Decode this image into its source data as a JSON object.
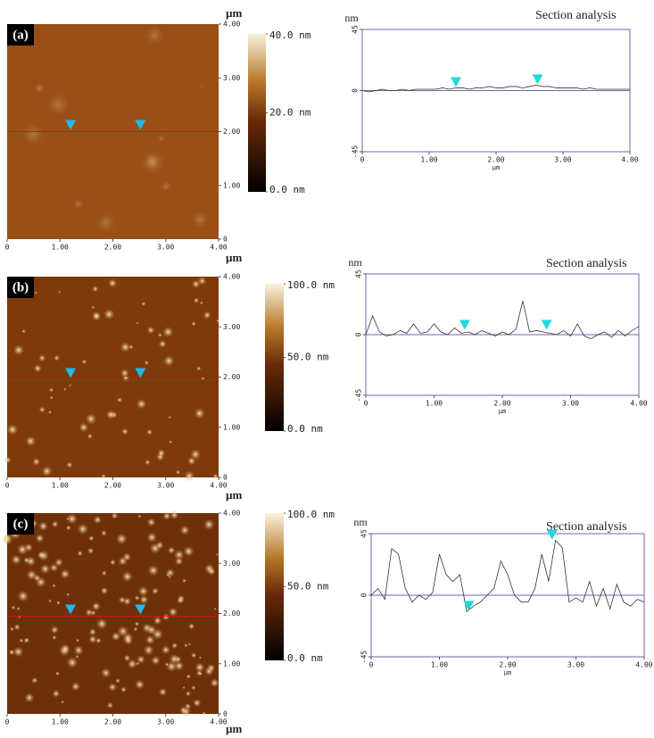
{
  "images": [
    {
      "label": "(a)",
      "unit": "µm",
      "xlim": [
        0,
        4
      ],
      "ylim": [
        0,
        4
      ],
      "xticks": [
        0,
        {
          "value": 1,
          "label": "1.00"
        },
        {
          "value": 2,
          "label": "2.00"
        },
        {
          "value": 3,
          "label": "3.00"
        },
        {
          "value": 4,
          "label": "4.00"
        }
      ],
      "yticks": [
        0,
        {
          "value": 1,
          "label": "1.00"
        },
        {
          "value": 2,
          "label": "2.00"
        },
        {
          "value": 3,
          "label": "3.00"
        },
        {
          "value": 4,
          "label": "4.00"
        }
      ],
      "clim": [
        0,
        40
      ],
      "colorbar_ticks": [
        {
          "value": 0,
          "label": "0.0 nm"
        },
        {
          "value": 20,
          "label": "20.0 nm"
        },
        {
          "value": 40,
          "label": "40.0 nm"
        }
      ]
    },
    {
      "label": "(b)",
      "unit": "µm",
      "xlim": [
        0,
        4
      ],
      "ylim": [
        0,
        4
      ],
      "xticks": [
        0,
        {
          "value": 1,
          "label": "1.00"
        },
        {
          "value": 2,
          "label": "2.00"
        },
        {
          "value": 3,
          "label": "3.00"
        },
        {
          "value": 4,
          "label": "4.00"
        }
      ],
      "yticks": [
        0,
        {
          "value": 1,
          "label": "1.00"
        },
        {
          "value": 2,
          "label": "2.00"
        },
        {
          "value": 3,
          "label": "3.00"
        },
        {
          "value": 4,
          "label": "4.00"
        }
      ],
      "clim": [
        0,
        100
      ],
      "colorbar_ticks": [
        {
          "value": 0,
          "label": "0.0 nm"
        },
        {
          "value": 50,
          "label": "50.0 nm"
        },
        {
          "value": 100,
          "label": "100.0 nm"
        }
      ]
    },
    {
      "label": "(c)",
      "unit": "µm",
      "xlim": [
        0,
        4
      ],
      "ylim": [
        0,
        4
      ],
      "xticks": [
        0,
        {
          "value": 1,
          "label": "1.00"
        },
        {
          "value": 2,
          "label": "2.00"
        },
        {
          "value": 3,
          "label": "3.00"
        },
        {
          "value": 4,
          "label": "4.00"
        }
      ],
      "yticks": [
        0,
        {
          "value": 1,
          "label": "1.00"
        },
        {
          "value": 2,
          "label": "2.00"
        },
        {
          "value": 3,
          "label": "3.00"
        },
        {
          "value": 4,
          "label": "4.00"
        }
      ],
      "clim": [
        0,
        100
      ],
      "colorbar_ticks": [
        {
          "value": 0,
          "label": "0.0 nm"
        },
        {
          "value": 50,
          "label": "50.0 nm"
        },
        {
          "value": 100,
          "label": "100.0 nm"
        }
      ]
    }
  ],
  "chart_data": [
    {
      "type": "line",
      "title": "Section analysis",
      "x_label": "µm",
      "y_label": "nm",
      "x": [
        0,
        0.1,
        0.2,
        0.3,
        0.4,
        0.5,
        0.6,
        0.7,
        0.8,
        0.9,
        1,
        1.1,
        1.2,
        1.3,
        1.4,
        1.5,
        1.6,
        1.7,
        1.8,
        1.9,
        2,
        2.1,
        2.2,
        2.3,
        2.4,
        2.5,
        2.6,
        2.7,
        2.8,
        2.9,
        3,
        3.1,
        3.2,
        3.3,
        3.4,
        3.5,
        3.6,
        3.7,
        3.8,
        3.9,
        4
      ],
      "values": [
        0,
        -1,
        0,
        1,
        0,
        0,
        1,
        0,
        1,
        1,
        1,
        1,
        2,
        1,
        2,
        2,
        1,
        2,
        2,
        3,
        2,
        2,
        3,
        3,
        2,
        3,
        4,
        3,
        3,
        2,
        2,
        2,
        2,
        1,
        2,
        1,
        1,
        1,
        1,
        1,
        1
      ],
      "color": "#333333",
      "cursors": {
        "x": [
          1.4,
          2.62
        ],
        "y": [
          2,
          4
        ],
        "color": "#22d8e0"
      },
      "xlim": [
        0,
        4
      ],
      "ylim": [
        -45,
        45
      ],
      "xticks": [
        0,
        {
          "value": 1,
          "label": "1.00"
        },
        {
          "value": 2,
          "label": "2.00"
        },
        {
          "value": 3,
          "label": "3.00"
        },
        {
          "value": 4,
          "label": "4.00"
        }
      ],
      "yticks": [
        -45,
        0,
        45
      ]
    },
    {
      "type": "line",
      "title": "Section analysis",
      "x_label": "µm",
      "y_label": "nm",
      "x": [
        0,
        0.1,
        0.2,
        0.3,
        0.4,
        0.5,
        0.6,
        0.7,
        0.8,
        0.9,
        1,
        1.1,
        1.2,
        1.3,
        1.4,
        1.5,
        1.6,
        1.7,
        1.8,
        1.9,
        2,
        2.1,
        2.2,
        2.3,
        2.4,
        2.5,
        2.6,
        2.7,
        2.8,
        2.9,
        3,
        3.1,
        3.2,
        3.3,
        3.4,
        3.5,
        3.6,
        3.7,
        3.8,
        3.9,
        4
      ],
      "values": [
        0,
        14,
        2,
        -1,
        0,
        3,
        1,
        8,
        1,
        2,
        8,
        2,
        0,
        5,
        1,
        2,
        0,
        3,
        1,
        -1,
        2,
        0,
        4,
        25,
        2,
        3,
        2,
        1,
        0,
        3,
        -1,
        8,
        -1,
        -3,
        0,
        2,
        -2,
        3,
        -1,
        3,
        6
      ],
      "color": "#333333",
      "cursors": {
        "x": [
          1.45,
          2.65
        ],
        "y": [
          3,
          3
        ],
        "color": "#22d8e0"
      },
      "xlim": [
        0,
        4
      ],
      "ylim": [
        -45,
        45
      ],
      "xticks": [
        0,
        {
          "value": 1,
          "label": "1.00"
        },
        {
          "value": 2,
          "label": "2.00"
        },
        {
          "value": 3,
          "label": "3.00"
        },
        {
          "value": 4,
          "label": "4.00"
        }
      ],
      "yticks": [
        -45,
        0,
        45
      ]
    },
    {
      "type": "line",
      "title": "Section analysis",
      "x_label": "µm",
      "y_label": "nm",
      "x": [
        0,
        0.1,
        0.2,
        0.3,
        0.4,
        0.5,
        0.6,
        0.7,
        0.8,
        0.9,
        1,
        1.1,
        1.2,
        1.3,
        1.4,
        1.5,
        1.6,
        1.7,
        1.8,
        1.9,
        2,
        2.1,
        2.2,
        2.3,
        2.4,
        2.5,
        2.6,
        2.7,
        2.8,
        2.9,
        3,
        3.1,
        3.2,
        3.3,
        3.4,
        3.5,
        3.6,
        3.7,
        3.8,
        3.9,
        4
      ],
      "values": [
        0,
        5,
        -3,
        34,
        30,
        5,
        -5,
        0,
        -3,
        2,
        30,
        15,
        10,
        15,
        -12,
        -8,
        -5,
        0,
        5,
        25,
        15,
        0,
        -5,
        -5,
        5,
        30,
        10,
        40,
        35,
        -5,
        -2,
        -5,
        10,
        -8,
        5,
        -10,
        8,
        -5,
        -8,
        -3,
        -5
      ],
      "color": "#333333",
      "cursors": {
        "x": [
          1.43,
          2.65
        ],
        "y": [
          -12,
          40
        ],
        "color": "#22d8e0"
      },
      "xlim": [
        0,
        4
      ],
      "ylim": [
        -45,
        45
      ],
      "xticks": [
        0,
        {
          "value": 1,
          "label": "1.00"
        },
        {
          "value": 2,
          "label": "2.00"
        },
        {
          "value": 3,
          "label": "3.00"
        },
        {
          "value": 4,
          "label": "4.00"
        }
      ],
      "yticks": [
        -45,
        0,
        45
      ]
    }
  ]
}
